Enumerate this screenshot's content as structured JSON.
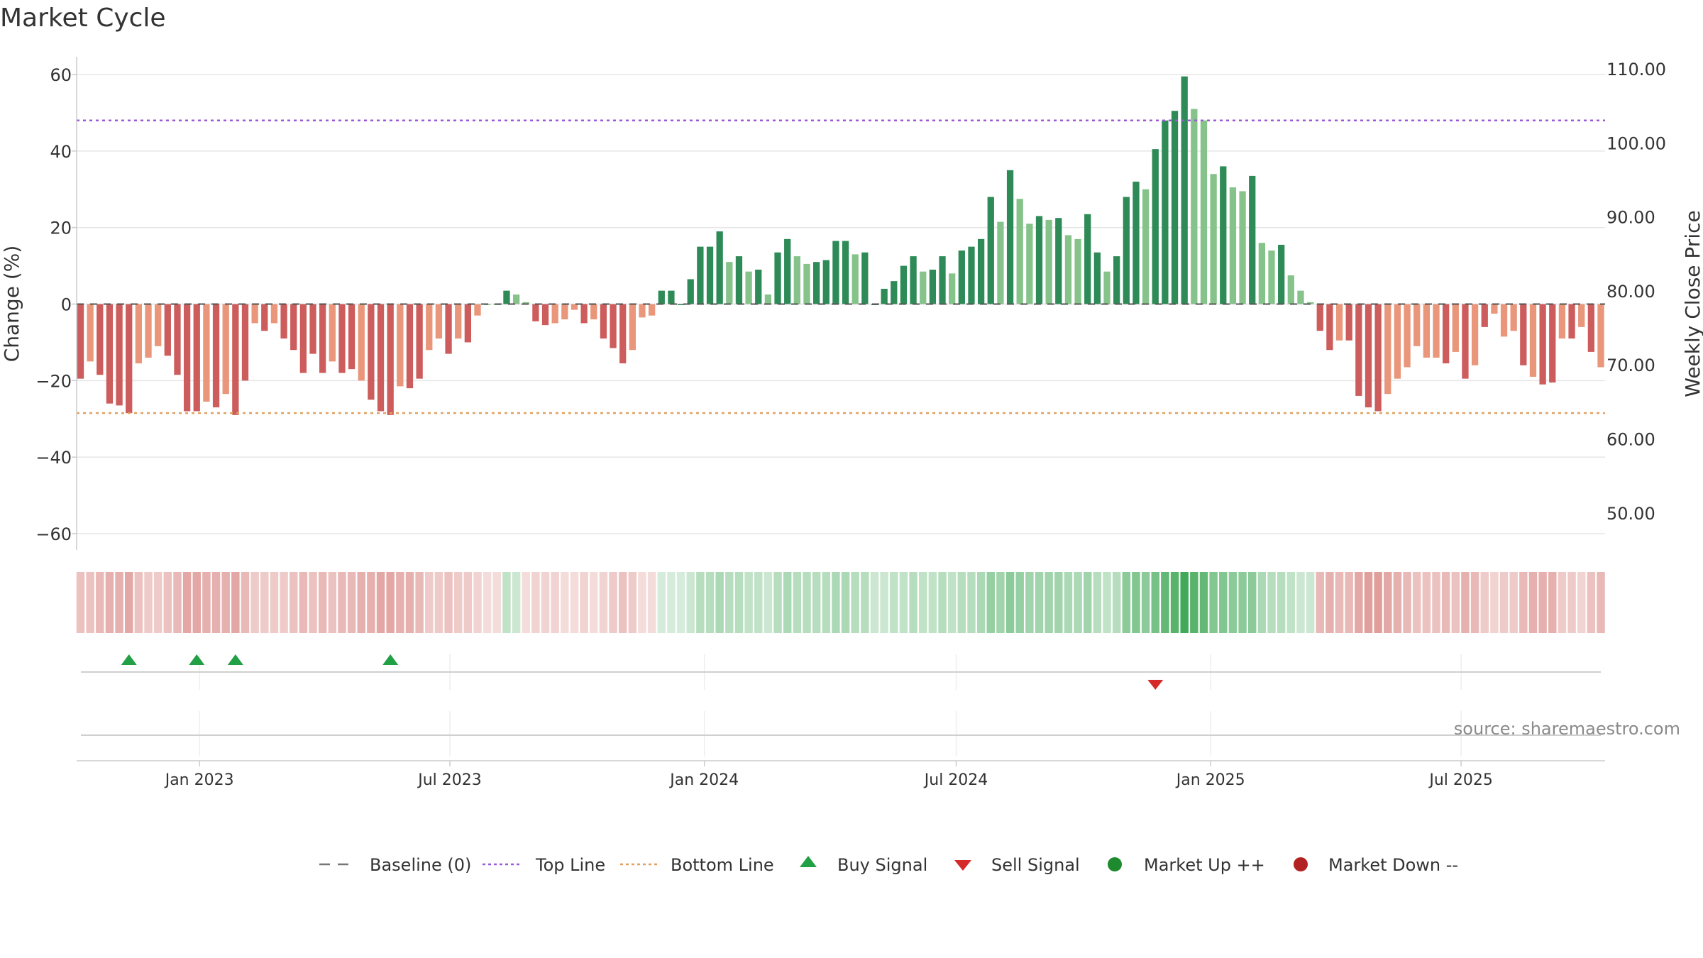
{
  "colors": {
    "up_dark": "#2e8b57",
    "up_light": "#86c38a",
    "down_dark": "#cd5c5c",
    "down_light": "#e9967a",
    "top_line": "#9b59d6",
    "bottom_line": "#e0a060",
    "buy": "#22a045",
    "sell": "#d42a2a",
    "market_up": "#1e8a2e",
    "market_down": "#b22222"
  },
  "chart_data": {
    "type": "bar",
    "title": "Market Cycle",
    "ylabel": "Change (%)",
    "y2label": "Weekly Close Price",
    "ylim": [
      -60,
      60
    ],
    "y2lim": [
      50,
      110
    ],
    "yticks": [
      60,
      40,
      20,
      0,
      -20,
      -40,
      -60
    ],
    "ytick_labels": [
      "60",
      "40",
      "20",
      "0",
      "−20",
      "−40",
      "−60"
    ],
    "y2ticks": [
      "110.00",
      "100.00",
      "90.00",
      "80.00",
      "70.00",
      "60.00",
      "50.00"
    ],
    "x_start": "2022-10-07",
    "x_step_days": 7,
    "xticks": [
      {
        "label": "Jan 2023",
        "date": "2023-01-01"
      },
      {
        "label": "Jul 2023",
        "date": "2023-07-01"
      },
      {
        "label": "Jan 2024",
        "date": "2024-01-01"
      },
      {
        "label": "Jul 2024",
        "date": "2024-07-01"
      },
      {
        "label": "Jan 2025",
        "date": "2025-01-01"
      },
      {
        "label": "Jul 2025",
        "date": "2025-07-01"
      }
    ],
    "values": [
      -19.5,
      -15,
      -18.5,
      -26,
      -26.5,
      -28.5,
      -15.5,
      -14,
      -11,
      -13.5,
      -18.5,
      -28,
      -28,
      -25.5,
      -27,
      -23.5,
      -29,
      -20,
      -5,
      -7,
      -5,
      -9,
      -12,
      -18,
      -13,
      -18,
      -15,
      -18,
      -17,
      -20,
      -25,
      -28,
      -29,
      -21.5,
      -22,
      -19.5,
      -12,
      -9,
      -13,
      -9,
      -10,
      -3,
      0,
      0,
      3.5,
      2.5,
      0.5,
      -4.5,
      -5.5,
      -5,
      -4,
      -1.5,
      -5,
      -4,
      -9,
      -11.5,
      -15.5,
      -12,
      -3.5,
      -3,
      3.5,
      3.5,
      0,
      6.5,
      15,
      15,
      19,
      11,
      12.5,
      8.5,
      9,
      2.5,
      13.5,
      17,
      12.5,
      10.5,
      11,
      11.5,
      16.5,
      16.5,
      13,
      13.5,
      0,
      4,
      6,
      10,
      12.5,
      8.5,
      9,
      12.5,
      8,
      14,
      15,
      17,
      28,
      21.5,
      35,
      27.5,
      21,
      23,
      22,
      22.5,
      18,
      17,
      23.5,
      13.5,
      8.5,
      12.5,
      28,
      32,
      30,
      40.5,
      48,
      50.5,
      59.5,
      51,
      48,
      34,
      36,
      30.5,
      29.5,
      33.5,
      16,
      14,
      15.5,
      7.5,
      3.5,
      0.5,
      -7,
      -12,
      -9.5,
      -9.5,
      -24,
      -27,
      -28,
      -23.5,
      -19.5,
      -16.5,
      -11,
      -14,
      -14,
      -15.5,
      -12.5,
      -19.5,
      -16,
      -6,
      -2.5,
      -8.5,
      -7,
      -16,
      -19,
      -21,
      -20.5,
      -9,
      -9,
      -6,
      -12.5,
      -16.5
    ],
    "bar_shade": [
      1,
      0,
      1,
      1,
      1,
      1,
      0,
      0,
      0,
      1,
      1,
      1,
      1,
      0,
      1,
      0,
      1,
      1,
      0,
      1,
      0,
      1,
      1,
      1,
      1,
      1,
      0,
      1,
      1,
      0,
      1,
      1,
      1,
      0,
      1,
      1,
      0,
      0,
      1,
      0,
      1,
      0,
      0,
      0,
      1,
      0,
      0,
      1,
      1,
      0,
      0,
      0,
      1,
      0,
      1,
      1,
      1,
      0,
      0,
      0,
      1,
      1,
      1,
      1,
      1,
      1,
      1,
      0,
      1,
      0,
      1,
      0,
      1,
      1,
      0,
      0,
      1,
      1,
      1,
      1,
      0,
      1,
      1,
      1,
      1,
      1,
      1,
      0,
      1,
      1,
      0,
      1,
      1,
      1,
      1,
      0,
      1,
      0,
      0,
      1,
      0,
      1,
      0,
      0,
      1,
      1,
      0,
      1,
      1,
      1,
      0,
      1,
      1,
      1,
      1,
      0,
      0,
      0,
      1,
      0,
      0,
      1,
      0,
      0,
      1,
      0,
      0,
      0,
      1,
      1,
      0,
      1,
      1,
      1,
      1,
      0,
      0,
      0,
      0,
      0,
      0,
      1,
      0,
      1,
      0,
      1,
      0,
      0,
      0,
      1,
      0,
      1,
      1,
      0,
      1,
      0,
      1,
      0,
      0
    ],
    "top_line": 48,
    "bottom_line": -28.5,
    "buy_signals": [
      5,
      12,
      16,
      32
    ],
    "sell_signals": [
      111
    ],
    "heat_strip": [
      -0.35,
      -0.35,
      -0.4,
      -0.45,
      -0.45,
      -0.5,
      -0.35,
      -0.3,
      -0.3,
      -0.35,
      -0.4,
      -0.5,
      -0.5,
      -0.45,
      -0.45,
      -0.45,
      -0.5,
      -0.4,
      -0.3,
      -0.3,
      -0.3,
      -0.3,
      -0.35,
      -0.4,
      -0.35,
      -0.4,
      -0.35,
      -0.4,
      -0.4,
      -0.45,
      -0.45,
      -0.5,
      -0.5,
      -0.45,
      -0.45,
      -0.4,
      -0.3,
      -0.3,
      -0.35,
      -0.3,
      -0.3,
      -0.25,
      -0.2,
      -0.2,
      0.3,
      0.25,
      -0.2,
      -0.25,
      -0.25,
      -0.25,
      -0.2,
      -0.2,
      -0.25,
      -0.2,
      -0.25,
      -0.3,
      -0.35,
      -0.3,
      -0.2,
      -0.2,
      0.2,
      0.2,
      0.2,
      0.25,
      0.35,
      0.35,
      0.4,
      0.35,
      0.35,
      0.3,
      0.3,
      0.25,
      0.35,
      0.4,
      0.35,
      0.35,
      0.35,
      0.35,
      0.4,
      0.4,
      0.35,
      0.35,
      0.25,
      0.25,
      0.3,
      0.3,
      0.35,
      0.3,
      0.3,
      0.35,
      0.3,
      0.35,
      0.35,
      0.4,
      0.5,
      0.45,
      0.55,
      0.5,
      0.45,
      0.45,
      0.45,
      0.45,
      0.4,
      0.4,
      0.45,
      0.35,
      0.3,
      0.35,
      0.55,
      0.6,
      0.55,
      0.65,
      0.75,
      0.8,
      0.9,
      0.8,
      0.75,
      0.6,
      0.6,
      0.55,
      0.55,
      0.55,
      0.4,
      0.35,
      0.35,
      0.3,
      0.25,
      0.25,
      -0.4,
      -0.45,
      -0.4,
      -0.4,
      -0.5,
      -0.55,
      -0.55,
      -0.5,
      -0.45,
      -0.4,
      -0.35,
      -0.35,
      -0.35,
      -0.4,
      -0.35,
      -0.45,
      -0.4,
      -0.3,
      -0.25,
      -0.3,
      -0.3,
      -0.4,
      -0.45,
      -0.45,
      -0.45,
      -0.3,
      -0.3,
      -0.25,
      -0.35,
      -0.4
    ],
    "legend": [
      {
        "label": "Baseline (0)",
        "symbol": "dash-gray"
      },
      {
        "label": "Top Line",
        "symbol": "dot-purple"
      },
      {
        "label": "Bottom Line",
        "symbol": "dot-orange"
      },
      {
        "label": "Buy Signal",
        "symbol": "triangle-up-green"
      },
      {
        "label": "Sell Signal",
        "symbol": "triangle-down-red"
      },
      {
        "label": "Market Up ++",
        "symbol": "circle-green"
      },
      {
        "label": "Market Down --",
        "symbol": "circle-red"
      }
    ],
    "legend_position": "bottom",
    "grid": true
  },
  "source_note": "source: sharemaestro.com"
}
